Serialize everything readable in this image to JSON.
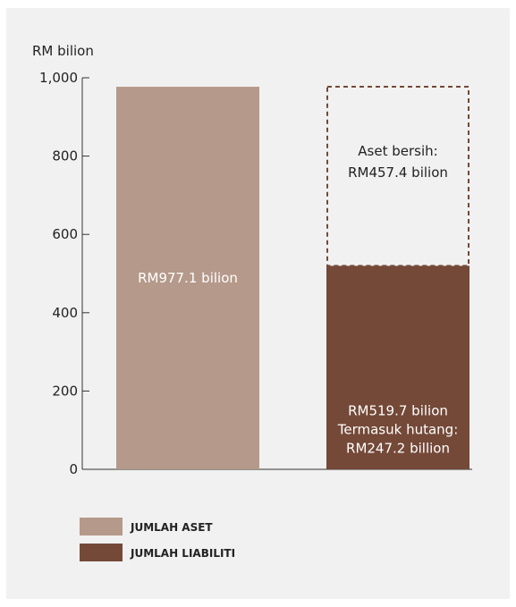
{
  "chart_data": {
    "type": "bar",
    "ylabel": "RM bilion",
    "ylim": [
      0,
      1000
    ],
    "yticks": [
      0,
      200,
      400,
      600,
      800,
      1000
    ],
    "ytick_labels": [
      "0",
      "200",
      "400",
      "600",
      "800",
      "1,000"
    ],
    "bars": [
      {
        "name": "JUMLAH ASET",
        "value": 977.1,
        "label_lines": [
          "RM977.1 bilion"
        ],
        "color": "#b5998a"
      },
      {
        "name": "JUMLAH LIABILITI",
        "value": 519.7,
        "label_lines": [
          "RM519.7 bilion",
          "Termasuk hutang:",
          "RM247.2 billion"
        ],
        "color": "#744938",
        "stacked_outline": {
          "value": 457.4,
          "label_lines": [
            "Aset bersih:",
            "RM457.4 bilion"
          ],
          "color": "#744938",
          "style": "dashed"
        }
      }
    ],
    "legend": [
      {
        "label": "JUMLAH ASET",
        "color": "#b5998a"
      },
      {
        "label": "JUMLAH LIABILITI",
        "color": "#744938"
      }
    ],
    "legend_position": "bottom-left",
    "grid": false
  }
}
